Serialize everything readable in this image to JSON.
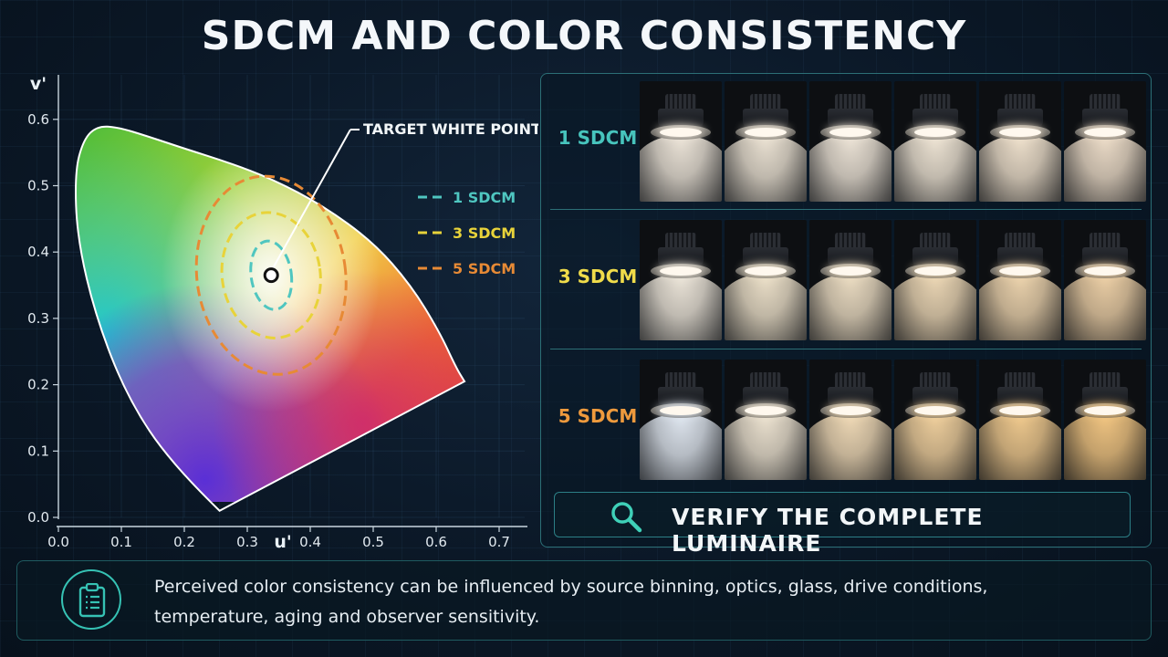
{
  "title": "SDCM AND COLOR CONSISTENCY",
  "chart_data": {
    "type": "diagram",
    "xlabel": "u'",
    "ylabel": "v'",
    "xlim": [
      0.0,
      0.7
    ],
    "ylim": [
      0.0,
      0.65
    ],
    "x_ticks": [
      "0.0",
      "0.1",
      "0.2",
      "0.3",
      "0.4",
      "0.5",
      "0.6",
      "0.7"
    ],
    "y_ticks": [
      "0.0",
      "0.1",
      "0.2",
      "0.3",
      "0.4",
      "0.5",
      "0.6"
    ],
    "annotation": "TARGET WHITE POINT",
    "white_point": {
      "u": 0.338,
      "v": 0.365
    },
    "ellipses": [
      {
        "name": "1 SDCM",
        "color": "#4fc6c0",
        "ru": 0.032,
        "rv": 0.052
      },
      {
        "name": "3 SDCM",
        "color": "#e8d33a",
        "ru": 0.078,
        "rv": 0.095
      },
      {
        "name": "5 SDCM",
        "color": "#e78a35",
        "ru": 0.118,
        "rv": 0.15
      }
    ]
  },
  "rows": [
    {
      "label": "1 SDCM",
      "color": "#47c4bd",
      "tones": [
        "#ece4d8",
        "#ebe2d3",
        "#ece3d6",
        "#eee4d4",
        "#eee0cc",
        "#ecdcc8"
      ]
    },
    {
      "label": "3 SDCM",
      "color": "#f0dc4a",
      "tones": [
        "#ece5d9",
        "#ece0c9",
        "#ebdcc2",
        "#ecd7b5",
        "#ecd3ad",
        "#eccfa6"
      ]
    },
    {
      "label": "5 SDCM",
      "color": "#ee9a3d",
      "tones": [
        "#dfe6ef",
        "#ece2d0",
        "#efd9b6",
        "#efcf9d",
        "#efc98e",
        "#f1c582"
      ]
    }
  ],
  "verify": {
    "label": "VERIFY THE COMPLETE LUMINAIRE",
    "icon": "magnifier-icon"
  },
  "note": {
    "icon": "clipboard-icon",
    "line1": "Perceived color consistency can be influenced by source binning, optics, glass, drive conditions,",
    "line2": "temperature, aging and observer sensitivity."
  }
}
